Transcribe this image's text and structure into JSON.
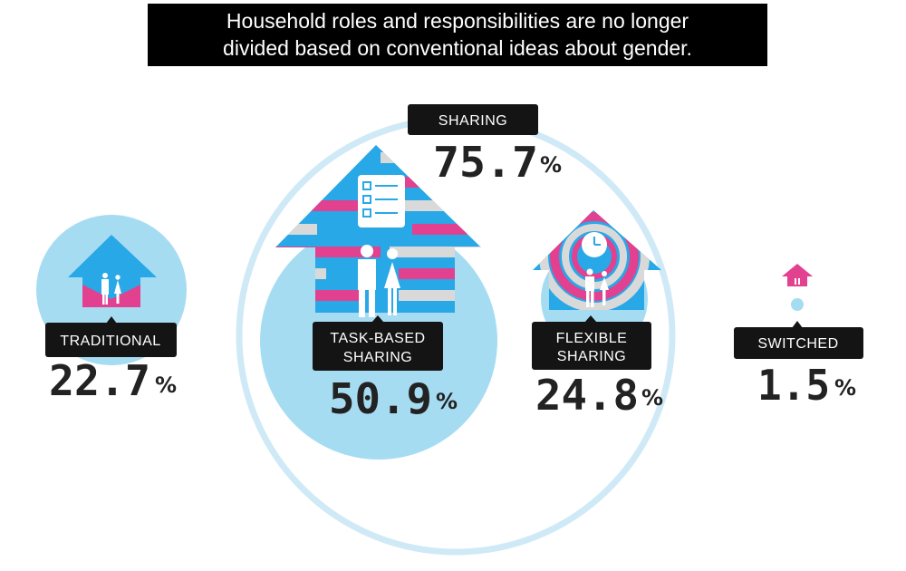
{
  "header": {
    "title_line1": "Household roles and responsibilities are no longer",
    "title_line2": "divided based on conventional ideas about gender."
  },
  "colors": {
    "light_blue": "#a6dcf2",
    "ring_blue": "#cfeaf6",
    "house_blue": "#28a8e6",
    "magenta": "#e2418f",
    "grey": "#d9d9d9",
    "label_bg": "#141414",
    "figure": "#ffffff"
  },
  "chart_data": {
    "type": "bubble",
    "title": "Household roles and responsibilities are no longer divided based on conventional ideas about gender.",
    "categories": [
      {
        "name": "TRADITIONAL",
        "value": 22.7
      },
      {
        "name": "TASK-BASED SHARING",
        "value": 50.9
      },
      {
        "name": "FLEXIBLE SHARING",
        "value": 24.8
      },
      {
        "name": "SWITCHED",
        "value": 1.5
      }
    ],
    "group": {
      "name": "SHARING",
      "value": 75.7,
      "members": [
        "TASK-BASED SHARING",
        "FLEXIBLE SHARING"
      ]
    },
    "labels": {
      "traditional": "TRADITIONAL",
      "task_line1": "TASK-BASED",
      "task_line2": "SHARING",
      "flex_line1": "FLEXIBLE",
      "flex_line2": "SHARING",
      "switched": "SWITCHED",
      "sharing": "SHARING"
    },
    "values_text": {
      "traditional": "22.7",
      "task": "50.9",
      "flexible": "24.8",
      "switched": "1.5",
      "sharing": "75.7"
    },
    "unit": "%",
    "icons": [
      "house-icon",
      "couple-icon",
      "checklist-icon",
      "clock-icon"
    ]
  }
}
